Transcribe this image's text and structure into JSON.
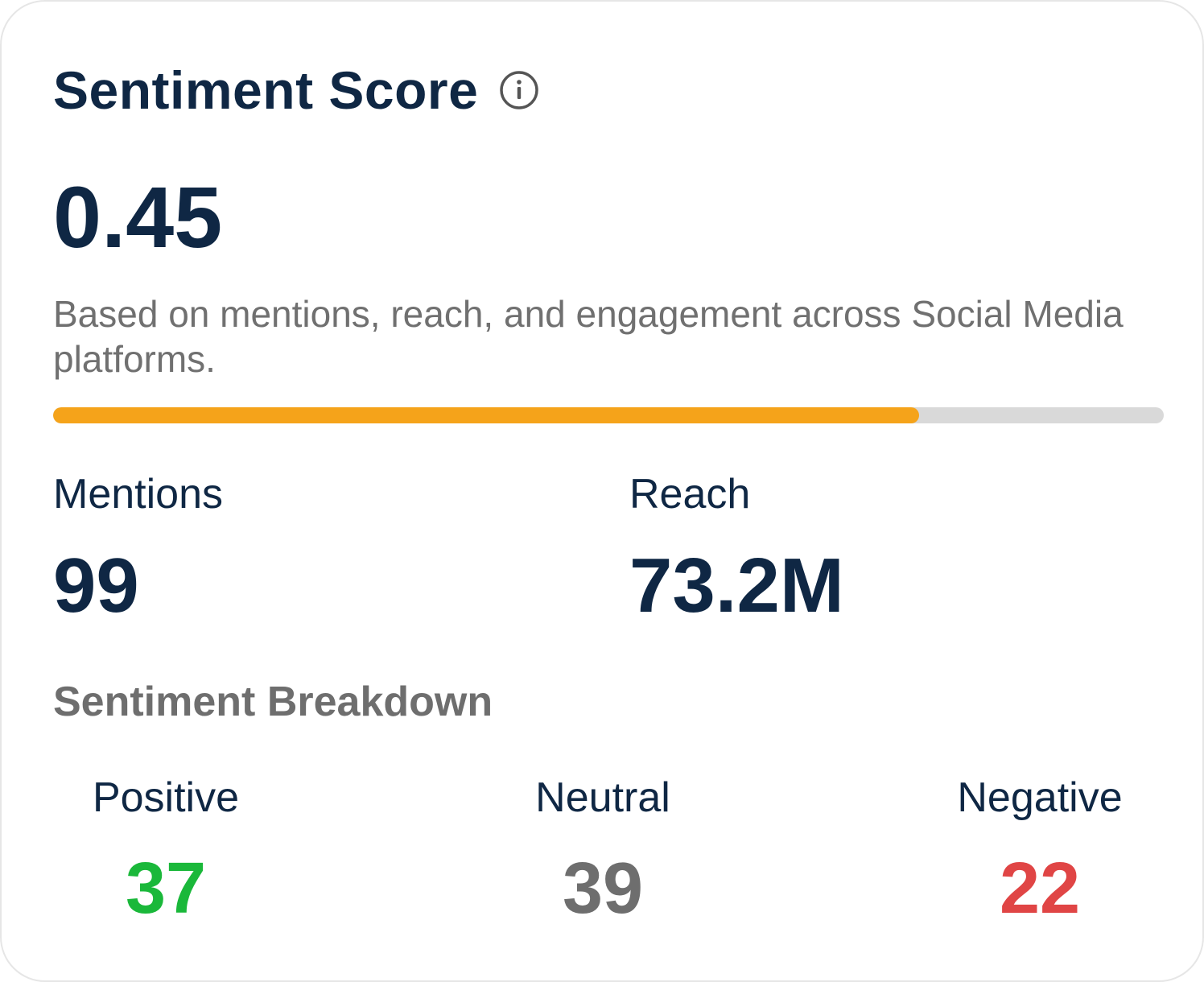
{
  "card": {
    "title": "Sentiment Score",
    "info_icon": "info-circle-icon",
    "score": "0.45",
    "description": "Based on mentions, reach, and engagement across Social Media platforms.",
    "progress": {
      "fraction": 0.78,
      "fill_color": "#f5a31a",
      "track_color": "#d9d9d9"
    }
  },
  "stats": {
    "mentions": {
      "label": "Mentions",
      "value": "99"
    },
    "reach": {
      "label": "Reach",
      "value": "73.2M"
    }
  },
  "breakdown": {
    "title": "Sentiment Breakdown",
    "positive": {
      "label": "Positive",
      "value": "37",
      "color": "#1ab83a"
    },
    "neutral": {
      "label": "Neutral",
      "value": "39",
      "color": "#6e6e6e"
    },
    "negative": {
      "label": "Negative",
      "value": "22",
      "color": "#e04545"
    }
  }
}
